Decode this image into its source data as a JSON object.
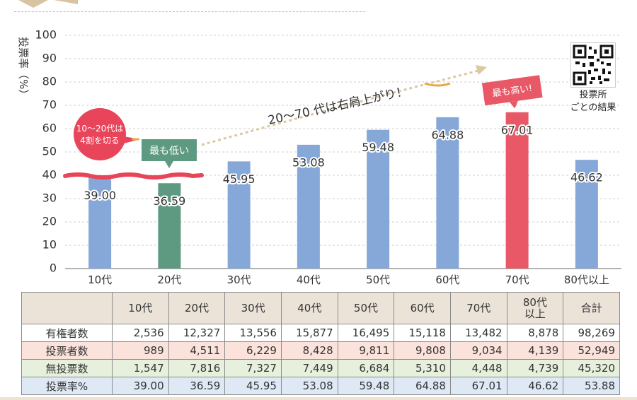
{
  "chart_data": {
    "type": "bar",
    "ylabel": "投票率（%）",
    "ylim": [
      0,
      100
    ],
    "yticks": [
      0,
      10,
      20,
      30,
      40,
      50,
      60,
      70,
      80,
      90,
      100
    ],
    "grid": true,
    "categories": [
      "10代",
      "20代",
      "30代",
      "40代",
      "50代",
      "60代",
      "70代",
      "80代以上"
    ],
    "values": [
      39.0,
      36.59,
      45.95,
      53.08,
      59.48,
      64.88,
      67.01,
      46.62
    ],
    "value_labels": [
      "39.00",
      "36.59",
      "45.95",
      "53.08",
      "59.48",
      "64.88",
      "67.01",
      "46.62"
    ],
    "bar_colors": [
      "#86a8d8",
      "#5e9a82",
      "#86a8d8",
      "#86a8d8",
      "#86a8d8",
      "#86a8d8",
      "#e85866",
      "#86a8d8"
    ],
    "reference_line": 40,
    "annotations": {
      "circle_text": [
        "10～20代は",
        "4割を切る"
      ],
      "lowest": "最も低い",
      "highest": "最も高い!",
      "trend": "20～70 代は右肩上がり！"
    }
  },
  "qr": {
    "caption_line1": "投票所",
    "caption_line2": "ごとの結果"
  },
  "table": {
    "headers": [
      "",
      "10代",
      "20代",
      "30代",
      "40代",
      "50代",
      "60代",
      "70代",
      "80代以上",
      "合計"
    ],
    "rows": [
      {
        "label": "有権者数",
        "values": [
          "2,536",
          "12,327",
          "13,556",
          "15,877",
          "16,495",
          "15,118",
          "13,482",
          "8,878",
          "98,269"
        ]
      },
      {
        "label": "投票者数",
        "values": [
          "989",
          "4,511",
          "6,229",
          "8,428",
          "9,811",
          "9,808",
          "9,034",
          "4,139",
          "52,949"
        ]
      },
      {
        "label": "無投票数",
        "values": [
          "1,547",
          "7,816",
          "7,327",
          "7,449",
          "6,684",
          "5,310",
          "4,448",
          "4,739",
          "45,320"
        ]
      },
      {
        "label": "投票率%",
        "values": [
          "39.00",
          "36.59",
          "45.95",
          "53.08",
          "59.48",
          "64.88",
          "67.01",
          "46.62",
          "53.88"
        ]
      }
    ]
  },
  "colors": {
    "bar_default": "#86a8d8",
    "bar_lowest": "#5e9a82",
    "bar_highest": "#e85866",
    "reference_line": "#e8445a",
    "trend_arrow": "#d9c9a4"
  }
}
